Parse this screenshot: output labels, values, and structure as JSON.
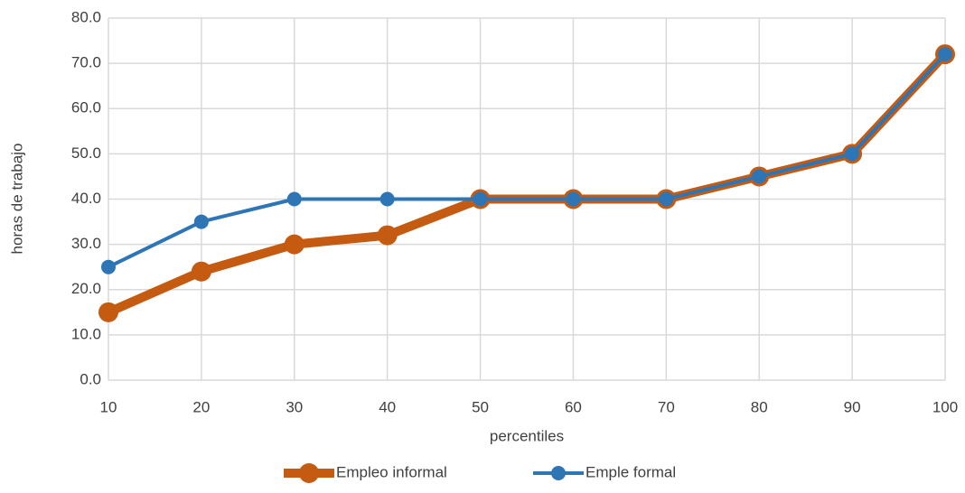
{
  "chart_data": {
    "type": "line",
    "x": [
      10,
      20,
      30,
      40,
      50,
      60,
      70,
      80,
      90,
      100
    ],
    "xlim": [
      10,
      100
    ],
    "xticks": [
      10,
      20,
      30,
      40,
      50,
      60,
      70,
      80,
      90,
      100
    ],
    "ylim": [
      0,
      80
    ],
    "yticks": [
      {
        "value": 0,
        "label": "0.0"
      },
      {
        "value": 10,
        "label": "10.0"
      },
      {
        "value": 20,
        "label": "20.0"
      },
      {
        "value": 30,
        "label": "30.0"
      },
      {
        "value": 40,
        "label": "40.0"
      },
      {
        "value": 50,
        "label": "50.0"
      },
      {
        "value": 60,
        "label": "60.0"
      },
      {
        "value": 70,
        "label": "70.0"
      },
      {
        "value": 80,
        "label": "80.0"
      }
    ],
    "xlabel": "percentiles",
    "ylabel": "horas de trabajo",
    "grid": true,
    "legend": "bottom",
    "series": [
      {
        "name": "Empleo informal",
        "color": "#c55a11",
        "values": [
          15,
          24,
          30,
          32,
          40,
          40,
          40,
          45,
          50,
          72
        ]
      },
      {
        "name": "Emple formal",
        "color": "#2e75b6",
        "values": [
          25,
          35,
          40,
          40,
          40,
          40,
          40,
          45,
          50,
          72
        ]
      }
    ]
  }
}
